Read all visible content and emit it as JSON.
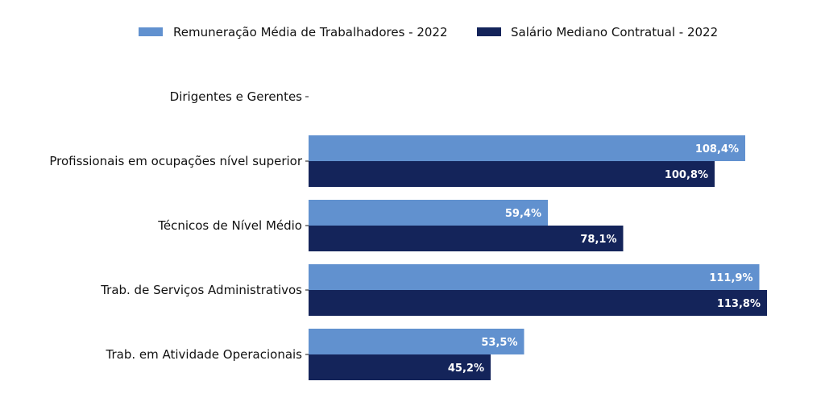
{
  "chart_data": {
    "type": "bar",
    "orientation": "horizontal",
    "title": "",
    "xlabel": "",
    "ylabel": "",
    "categories": [
      "Dirigentes e Gerentes",
      "Profissionais em ocupações nível superior",
      "Técnicos de Nível Médio",
      "Trab. de Serviços Administrativos",
      "Trab. em Atividade Operacionais"
    ],
    "series": [
      {
        "name": "Remuneração Média de Trabalhadores - 2022",
        "color": "#6191cf",
        "values": [
          null,
          108.4,
          59.4,
          111.9,
          53.5
        ],
        "labels": [
          "",
          "108,4%",
          "59,4%",
          "111,9%",
          "53,5%"
        ]
      },
      {
        "name": "Salário Mediano Contratual - 2022",
        "color": "#14245a",
        "values": [
          null,
          100.8,
          78.1,
          113.8,
          45.2
        ],
        "labels": [
          "",
          "100,8%",
          "78,1%",
          "113,8%",
          "45,2%"
        ]
      }
    ],
    "xlim": [
      0,
      115
    ],
    "grid": false,
    "legend_position": "top"
  }
}
